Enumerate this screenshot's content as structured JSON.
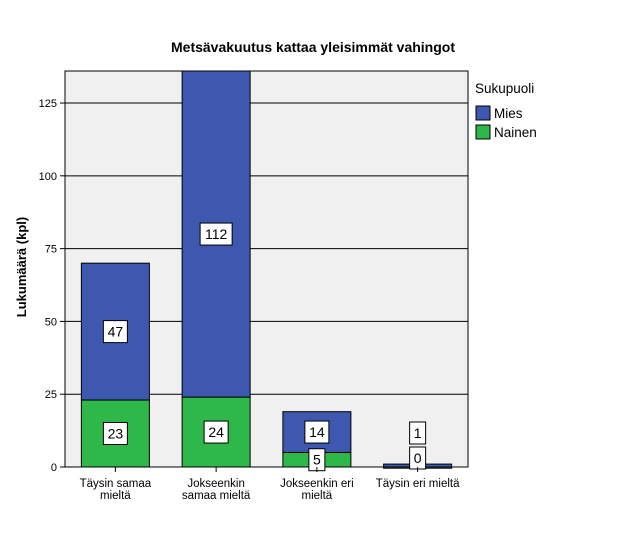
{
  "chart_data": {
    "type": "bar",
    "stacked": true,
    "title": "Metsävakuutus kattaa yleisimmät vahingot",
    "ylabel": "Lukumäärä (kpl)",
    "xlabel": "",
    "ylim": [
      0,
      136
    ],
    "yticks": [
      0,
      25,
      50,
      75,
      100,
      125
    ],
    "grid": true,
    "legend_position": "right",
    "legend_title": "Sukupuoli",
    "categories": [
      [
        "Täysin samaa",
        "mieltä"
      ],
      [
        "Jokseenkin",
        "samaa mieltä"
      ],
      [
        "Jokseenkin eri",
        "mieltä"
      ],
      [
        "Täysin eri mieltä"
      ]
    ],
    "series": [
      {
        "name": "Nainen",
        "color": "#2eb84a",
        "values": [
          23,
          24,
          5,
          0
        ]
      },
      {
        "name": "Mies",
        "color": "#3d58ae",
        "values": [
          47,
          112,
          14,
          1
        ]
      }
    ],
    "legend_order": [
      "Mies",
      "Nainen"
    ],
    "plot_background": "#f0f0f0"
  }
}
